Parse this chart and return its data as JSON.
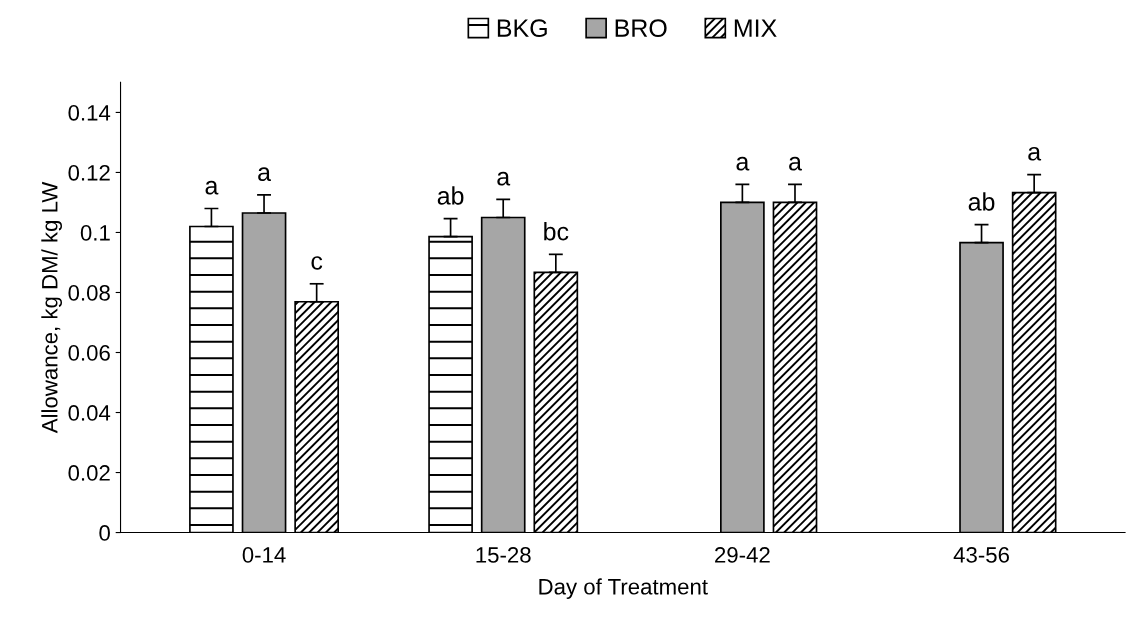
{
  "chart_data": {
    "type": "bar",
    "xlabel": "Day of Treatment",
    "ylabel": "Allowance, kg DM/ kg LW",
    "categories": [
      "0-14",
      "15-28",
      "29-42",
      "43-56"
    ],
    "series": [
      {
        "name": "BKG",
        "color": "#000000",
        "values": [
          0.102,
          0.0986,
          null,
          null
        ],
        "errors": [
          0.006,
          0.006,
          null,
          null
        ],
        "value_labels": [
          "a",
          "ab",
          null,
          null
        ]
      },
      {
        "name": "BRO",
        "color": "#a6a6a6",
        "values": [
          0.1065,
          0.105,
          0.11,
          0.0966
        ],
        "errors": [
          0.006,
          0.006,
          0.006,
          0.006
        ],
        "value_labels": [
          "a",
          "a",
          "a",
          "ab"
        ]
      },
      {
        "name": "MIX",
        "color": "#000000",
        "values": [
          0.0769,
          0.0867,
          0.11,
          0.1133
        ],
        "errors": [
          0.006,
          0.006,
          0.006,
          0.006
        ],
        "value_labels": [
          "c",
          "bc",
          "a",
          "a"
        ]
      }
    ],
    "ylim": [
      0,
      0.15
    ],
    "yticks": [
      0,
      0.02,
      0.04,
      0.06,
      0.08,
      0.1,
      0.12,
      0.14
    ],
    "grid": false,
    "legend": "top"
  }
}
